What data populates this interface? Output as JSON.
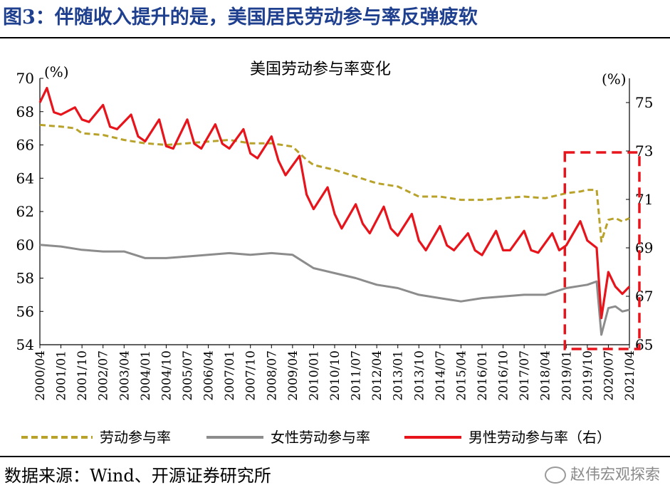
{
  "header": {
    "title": "图3：伴随收入提升的是，美国居民劳动参与率反弹疲软"
  },
  "footer": {
    "source": "数据来源：Wind、开源证券研究所",
    "watermark": "赵伟宏观探索"
  },
  "colors": {
    "title": "#1f3f8f",
    "total": "#b8a22a",
    "female": "#8c8c8c",
    "male": "#e8141c",
    "highlight": "#e8141c"
  },
  "chart_data": {
    "type": "line",
    "title": "美国劳动参与率变化",
    "left_axis": {
      "unit": "(%)",
      "ylim": [
        54,
        70
      ],
      "ticks": [
        54,
        56,
        58,
        60,
        62,
        64,
        66,
        68,
        70
      ]
    },
    "right_axis": {
      "unit": "(%)",
      "ylim": [
        65,
        76
      ],
      "ticks": [
        65,
        67,
        69,
        71,
        73,
        75
      ]
    },
    "x_ticks": [
      "2000/04",
      "2001/01",
      "2001/10",
      "2002/07",
      "2003/04",
      "2004/01",
      "2004/10",
      "2005/07",
      "2006/04",
      "2007/01",
      "2007/10",
      "2008/07",
      "2009/04",
      "2010/01",
      "2010/10",
      "2011/07",
      "2012/04",
      "2013/01",
      "2013/10",
      "2014/07",
      "2015/04",
      "2016/01",
      "2016/10",
      "2017/07",
      "2018/04",
      "2019/01",
      "2019/10",
      "2020/07",
      "2021/04"
    ],
    "legend": [
      "劳动参与率",
      "女性劳动参与率",
      "男性劳动参与率（右）"
    ],
    "highlight": {
      "x_from": "2019/01",
      "x_to": "2021/04",
      "style": "dashed red box"
    },
    "series": [
      {
        "name": "劳动参与率",
        "axis": "left",
        "style": "dashed",
        "points": [
          [
            "2000/04",
            67.2
          ],
          [
            "2001/01",
            67.1
          ],
          [
            "2001/07",
            67.0
          ],
          [
            "2001/10",
            66.7
          ],
          [
            "2002/07",
            66.6
          ],
          [
            "2003/01",
            66.4
          ],
          [
            "2003/04",
            66.3
          ],
          [
            "2004/01",
            66.1
          ],
          [
            "2004/10",
            66.0
          ],
          [
            "2005/07",
            66.1
          ],
          [
            "2006/04",
            66.2
          ],
          [
            "2007/01",
            66.3
          ],
          [
            "2007/10",
            66.1
          ],
          [
            "2008/07",
            66.1
          ],
          [
            "2009/04",
            65.9
          ],
          [
            "2009/10",
            65.1
          ],
          [
            "2010/01",
            64.8
          ],
          [
            "2010/10",
            64.5
          ],
          [
            "2011/07",
            64.1
          ],
          [
            "2012/04",
            63.7
          ],
          [
            "2013/01",
            63.5
          ],
          [
            "2013/10",
            62.9
          ],
          [
            "2014/07",
            62.9
          ],
          [
            "2015/04",
            62.7
          ],
          [
            "2016/01",
            62.7
          ],
          [
            "2016/10",
            62.8
          ],
          [
            "2017/07",
            62.9
          ],
          [
            "2018/04",
            62.8
          ],
          [
            "2019/01",
            63.1
          ],
          [
            "2019/07",
            63.2
          ],
          [
            "2019/10",
            63.3
          ],
          [
            "2020/02",
            63.3
          ],
          [
            "2020/04",
            60.2
          ],
          [
            "2020/07",
            61.5
          ],
          [
            "2020/10",
            61.6
          ],
          [
            "2021/01",
            61.4
          ],
          [
            "2021/04",
            61.6
          ]
        ]
      },
      {
        "name": "女性劳动参与率",
        "axis": "left",
        "style": "solid",
        "points": [
          [
            "2000/04",
            60.0
          ],
          [
            "2001/01",
            59.9
          ],
          [
            "2001/10",
            59.7
          ],
          [
            "2002/07",
            59.6
          ],
          [
            "2003/04",
            59.6
          ],
          [
            "2004/01",
            59.2
          ],
          [
            "2004/10",
            59.2
          ],
          [
            "2005/07",
            59.3
          ],
          [
            "2006/04",
            59.4
          ],
          [
            "2007/01",
            59.5
          ],
          [
            "2007/10",
            59.4
          ],
          [
            "2008/07",
            59.5
          ],
          [
            "2009/04",
            59.4
          ],
          [
            "2010/01",
            58.6
          ],
          [
            "2010/10",
            58.3
          ],
          [
            "2011/07",
            58.0
          ],
          [
            "2012/04",
            57.6
          ],
          [
            "2013/01",
            57.4
          ],
          [
            "2013/10",
            57.0
          ],
          [
            "2014/07",
            56.8
          ],
          [
            "2015/04",
            56.6
          ],
          [
            "2016/01",
            56.8
          ],
          [
            "2016/10",
            56.9
          ],
          [
            "2017/07",
            57.0
          ],
          [
            "2018/04",
            57.0
          ],
          [
            "2019/01",
            57.4
          ],
          [
            "2019/10",
            57.6
          ],
          [
            "2020/02",
            57.8
          ],
          [
            "2020/04",
            54.6
          ],
          [
            "2020/07",
            56.2
          ],
          [
            "2020/10",
            56.3
          ],
          [
            "2021/01",
            56.0
          ],
          [
            "2021/04",
            56.1
          ]
        ]
      },
      {
        "name": "男性劳动参与率（右）",
        "axis": "right",
        "style": "solid",
        "points": [
          [
            "2000/04",
            75.0
          ],
          [
            "2000/07",
            75.6
          ],
          [
            "2000/10",
            74.6
          ],
          [
            "2001/01",
            74.5
          ],
          [
            "2001/07",
            74.8
          ],
          [
            "2001/10",
            74.3
          ],
          [
            "2002/01",
            74.2
          ],
          [
            "2002/07",
            74.9
          ],
          [
            "2002/10",
            74.0
          ],
          [
            "2003/01",
            73.9
          ],
          [
            "2003/07",
            74.5
          ],
          [
            "2003/10",
            73.6
          ],
          [
            "2004/01",
            73.4
          ],
          [
            "2004/07",
            74.3
          ],
          [
            "2004/10",
            73.2
          ],
          [
            "2005/01",
            73.1
          ],
          [
            "2005/07",
            74.3
          ],
          [
            "2005/10",
            73.3
          ],
          [
            "2006/01",
            73.1
          ],
          [
            "2006/07",
            74.1
          ],
          [
            "2006/10",
            73.3
          ],
          [
            "2007/01",
            73.1
          ],
          [
            "2007/07",
            73.9
          ],
          [
            "2007/10",
            72.9
          ],
          [
            "2008/01",
            72.7
          ],
          [
            "2008/07",
            73.6
          ],
          [
            "2008/10",
            72.6
          ],
          [
            "2009/01",
            72.0
          ],
          [
            "2009/07",
            72.8
          ],
          [
            "2009/10",
            71.2
          ],
          [
            "2010/01",
            70.6
          ],
          [
            "2010/07",
            71.5
          ],
          [
            "2010/10",
            70.4
          ],
          [
            "2011/01",
            69.8
          ],
          [
            "2011/07",
            70.8
          ],
          [
            "2011/10",
            70.0
          ],
          [
            "2012/01",
            69.6
          ],
          [
            "2012/07",
            70.7
          ],
          [
            "2012/10",
            69.8
          ],
          [
            "2013/01",
            69.5
          ],
          [
            "2013/07",
            70.4
          ],
          [
            "2013/10",
            69.3
          ],
          [
            "2014/01",
            68.9
          ],
          [
            "2014/07",
            69.9
          ],
          [
            "2014/10",
            69.1
          ],
          [
            "2015/01",
            68.9
          ],
          [
            "2015/07",
            69.6
          ],
          [
            "2015/10",
            68.9
          ],
          [
            "2016/01",
            68.7
          ],
          [
            "2016/07",
            69.7
          ],
          [
            "2016/10",
            68.9
          ],
          [
            "2017/01",
            68.9
          ],
          [
            "2017/07",
            69.7
          ],
          [
            "2017/10",
            68.9
          ],
          [
            "2018/01",
            68.8
          ],
          [
            "2018/07",
            69.6
          ],
          [
            "2018/10",
            68.9
          ],
          [
            "2019/01",
            69.1
          ],
          [
            "2019/07",
            70.1
          ],
          [
            "2019/10",
            69.3
          ],
          [
            "2020/02",
            69.0
          ],
          [
            "2020/04",
            66.1
          ],
          [
            "2020/07",
            68.0
          ],
          [
            "2020/10",
            67.4
          ],
          [
            "2021/01",
            67.1
          ],
          [
            "2021/04",
            67.4
          ]
        ]
      }
    ]
  }
}
